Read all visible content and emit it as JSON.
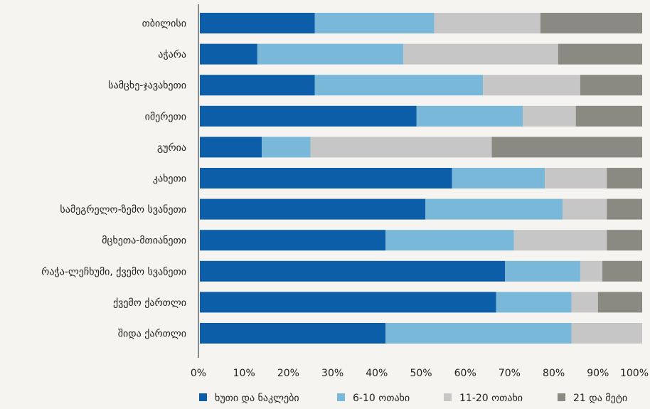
{
  "chart_data": {
    "type": "bar",
    "orientation": "horizontal",
    "stacked": true,
    "categories": [
      "თბილისი",
      "აჭარა",
      "სამცხე-ჯავახეთი",
      "იმერეთი",
      "გურია",
      "კახეთი",
      "სამეგრელო-ზემო სვანეთი",
      "მცხეთა-მთიანეთი",
      "რაჭა-ლეჩხუმი, ქვემო სვანეთი",
      "ქვემო ქართლი",
      "შიდა ქართლი"
    ],
    "series": [
      {
        "name": "ხუთი და ნაკლები",
        "color": "#0c5ea8",
        "values": [
          26,
          13,
          26,
          49,
          14,
          57,
          51,
          42,
          69,
          67,
          42
        ]
      },
      {
        "name": "6-10 ოთახი",
        "color": "#7ab8d9",
        "values": [
          27,
          33,
          38,
          24,
          11,
          21,
          31,
          29,
          17,
          17,
          42
        ]
      },
      {
        "name": "11-20 ოთახი",
        "color": "#c6c6c6",
        "values": [
          24,
          35,
          22,
          12,
          41,
          14,
          10,
          21,
          5,
          6,
          16
        ]
      },
      {
        "name": "21 და მეტი",
        "color": "#8b8a82",
        "values": [
          23,
          19,
          14,
          15,
          34,
          8,
          8,
          8,
          9,
          10,
          0
        ]
      }
    ],
    "x_ticks": [
      "0%",
      "10%",
      "20%",
      "30%",
      "40%",
      "50%",
      "60%",
      "70%",
      "80%",
      "90%",
      "100%"
    ],
    "xlim": [
      0,
      100
    ],
    "grid": false,
    "legend_position": "bottom"
  }
}
